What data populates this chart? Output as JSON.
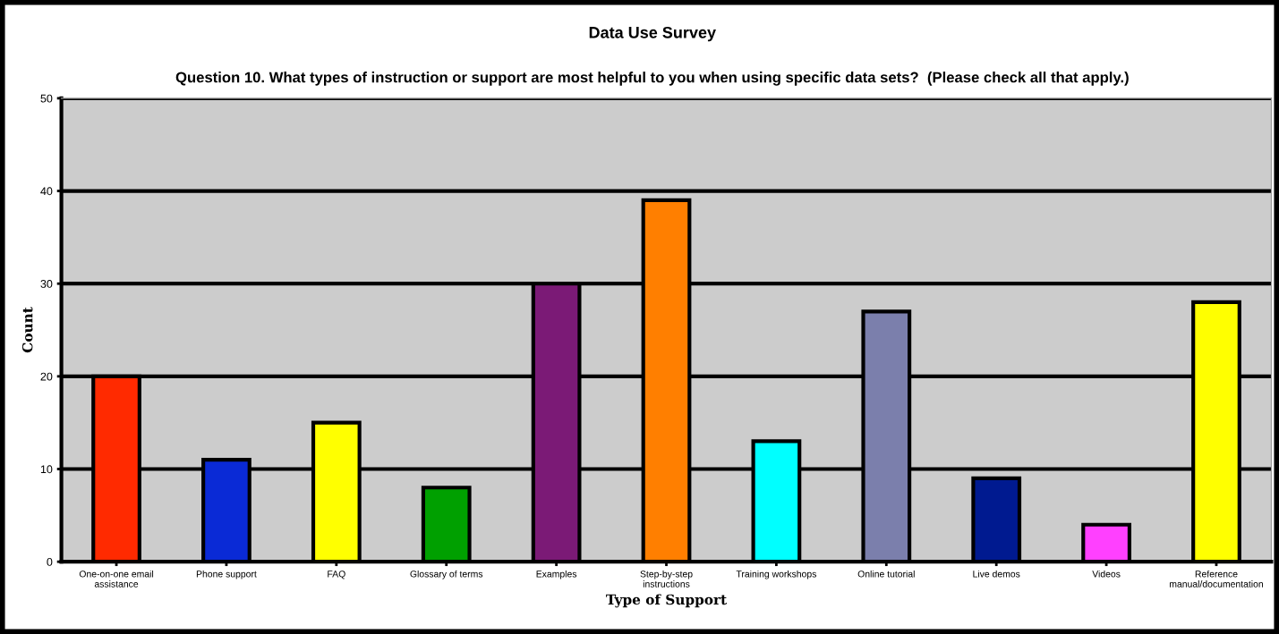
{
  "chart_data": {
    "type": "bar",
    "title": "Data Use Survey",
    "subtitle": "Question 10. What types of instruction or support are most helpful to you when using specific data sets?  (Please check all that apply.)",
    "xlabel": "Type of Support",
    "ylabel": "Count",
    "categories": [
      "One-on-one email assistance",
      "Phone support",
      "FAQ",
      "Glossary of terms",
      "Examples",
      "Step-by-step instructions",
      "Training workshops",
      "Online tutorial",
      "Live demos",
      "Videos",
      "Reference manual/documentation"
    ],
    "values": [
      20,
      11,
      15,
      8,
      30,
      39,
      13,
      27,
      9,
      4,
      28
    ],
    "colors": [
      "#ff2a00",
      "#0a2ad6",
      "#ffff00",
      "#00a000",
      "#7b1a76",
      "#ff7f00",
      "#00ffff",
      "#7b7fac",
      "#001a90",
      "#ff40ff",
      "#ffff00"
    ],
    "ylim": [
      0,
      50
    ],
    "yticks": [
      0,
      10,
      20,
      30,
      40,
      50
    ],
    "grid": "y",
    "legend": false
  }
}
